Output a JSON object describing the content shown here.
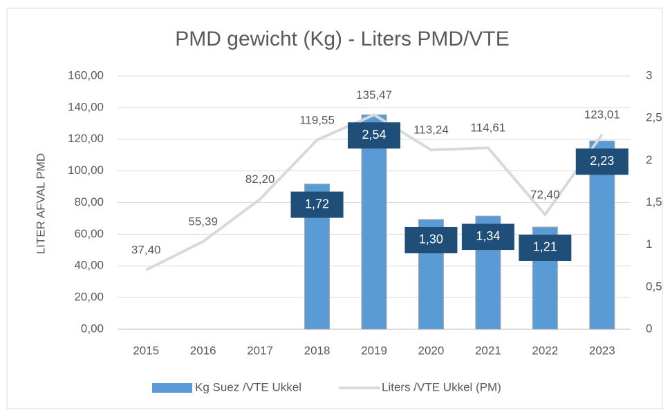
{
  "chart_data": {
    "type": "combo",
    "title": "PMD gewicht (Kg) - Liters PMD/VTE",
    "y_label": "LITER AFVAL PMD",
    "categories": [
      "2015",
      "2016",
      "2017",
      "2018",
      "2019",
      "2020",
      "2021",
      "2022",
      "2023"
    ],
    "series": [
      {
        "name": "Kg Suez /VTE Ukkel",
        "type": "bar",
        "axis": "y2",
        "color": "#5b9bd5",
        "values": [
          null,
          null,
          null,
          1.72,
          2.54,
          1.3,
          1.34,
          1.21,
          2.23
        ],
        "value_labels": [
          null,
          null,
          null,
          "1,72",
          "2,54",
          "1,30",
          "1,34",
          "1,21",
          "2,23"
        ]
      },
      {
        "name": "Liters /VTE Ukkel (PM)",
        "type": "line",
        "axis": "y",
        "color": "#d9d9d9",
        "values": [
          37.4,
          55.39,
          82.2,
          119.55,
          135.47,
          113.24,
          114.61,
          72.4,
          123.01
        ],
        "value_labels": [
          "37,40",
          "55,39",
          "82,20",
          "119,55",
          "135,47",
          "113,24",
          "114,61",
          "72,40",
          "123,01"
        ]
      }
    ],
    "ylim": [
      0,
      160
    ],
    "yticks": [
      {
        "value": 0,
        "label": "0,00"
      },
      {
        "value": 20,
        "label": "20,00"
      },
      {
        "value": 40,
        "label": "40,00"
      },
      {
        "value": 60,
        "label": "60,00"
      },
      {
        "value": 80,
        "label": "80,00"
      },
      {
        "value": 100,
        "label": "100,00"
      },
      {
        "value": 120,
        "label": "120,00"
      },
      {
        "value": 140,
        "label": "140,00"
      },
      {
        "value": 160,
        "label": "160,00"
      }
    ],
    "y2lim": [
      0,
      3
    ],
    "y2ticks": [
      0,
      {
        "value": 0.5,
        "label": "0,5"
      },
      1,
      {
        "value": 1.5,
        "label": "1,5"
      },
      2,
      {
        "value": 2.5,
        "label": "2,5"
      },
      3
    ],
    "grid": true,
    "legend": "bottom"
  }
}
